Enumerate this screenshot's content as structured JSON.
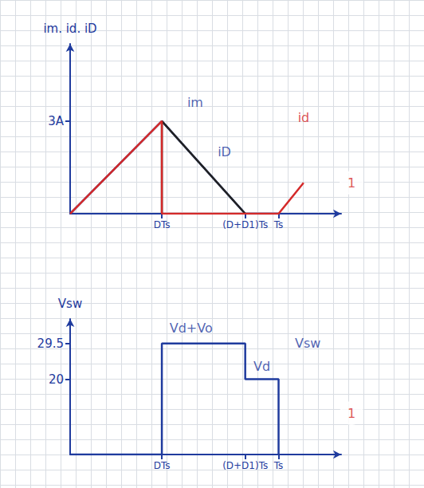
{
  "chart_data": [
    {
      "type": "line",
      "ylabel": "im. id. iD",
      "xlim": [
        0,
        1.3
      ],
      "xticks": [
        {
          "value": 0.44,
          "label": "DTs"
        },
        {
          "value": 0.84,
          "label": "(D+D1)Ts"
        },
        {
          "value": 1,
          "label": "Ts"
        }
      ],
      "ylim": [
        0,
        5.5
      ],
      "yticks": [
        {
          "value": 3,
          "label": "3A"
        }
      ],
      "series": [
        {
          "name": "im",
          "color": "#1f3b9e",
          "line_style": "solid",
          "x": [
            0,
            0.44,
            0.84,
            1.0
          ],
          "values": [
            0,
            3,
            0,
            0
          ]
        },
        {
          "name": "iD",
          "color": "#222222",
          "line_style": "solid",
          "x": [
            0.44,
            0.44,
            0.84
          ],
          "values": [
            0,
            3,
            0
          ]
        },
        {
          "name": "id",
          "color": "#d42a2a",
          "line_style": "solid",
          "x": [
            0,
            0.44,
            0.44,
            1.0,
            1.12
          ],
          "values": [
            0,
            3,
            0,
            0,
            1
          ]
        }
      ],
      "annotations": [
        {
          "text": "im",
          "x": 0.6,
          "y": 3.6,
          "color": "#1f3b9e"
        },
        {
          "text": "iD",
          "x": 0.74,
          "y": 2.0,
          "color": "#1f3b9e"
        },
        {
          "text": "id",
          "x": 1.12,
          "y": 3.1,
          "color": "#d42a2a"
        },
        {
          "text": "1",
          "x": 1.35,
          "y": 1.0,
          "color": "#d42a2a",
          "marker": "circle"
        }
      ]
    },
    {
      "type": "line",
      "ylabel": "Vsw",
      "xlim": [
        0,
        1.3
      ],
      "xticks": [
        {
          "value": 0.44,
          "label": "DTs"
        },
        {
          "value": 0.84,
          "label": "(D+D1)Ts"
        },
        {
          "value": 1,
          "label": "Ts"
        }
      ],
      "ylim": [
        0,
        36
      ],
      "yticks": [
        20,
        29.5
      ],
      "series": [
        {
          "name": "Vsw",
          "color": "#1f3b9e",
          "line_style": "solid",
          "x": [
            0,
            0.44,
            0.44,
            0.84,
            0.84,
            1.0,
            1.0
          ],
          "values": [
            0,
            0,
            29.5,
            29.5,
            20,
            20,
            0
          ]
        }
      ],
      "annotations": [
        {
          "text": "Vd+Vo",
          "x": 0.58,
          "y": 33.5,
          "color": "#1f3b9e"
        },
        {
          "text": "Vsw",
          "x": 1.14,
          "y": 29.5,
          "color": "#1f3b9e"
        },
        {
          "text": "Vd",
          "x": 0.92,
          "y": 23.5,
          "color": "#1f3b9e"
        },
        {
          "text": "1",
          "x": 1.35,
          "y": 11,
          "color": "#d42a2a",
          "marker": "circle"
        }
      ]
    }
  ]
}
